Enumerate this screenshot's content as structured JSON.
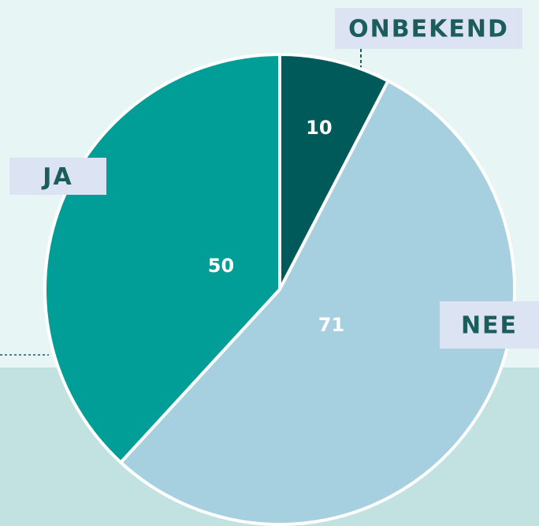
{
  "chart_data": {
    "type": "pie",
    "categories": [
      "ONBEKEND",
      "NEE",
      "JA"
    ],
    "values": [
      10,
      71,
      50
    ],
    "colors": [
      "#005a5a",
      "#a6cfe0",
      "#009e96"
    ]
  }
}
